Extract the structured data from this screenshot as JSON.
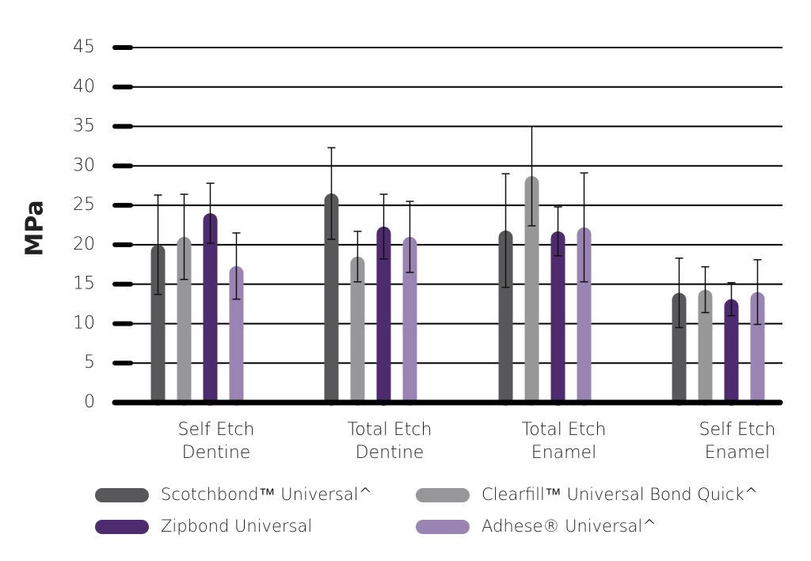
{
  "chart_data": {
    "type": "bar",
    "y_label": "MPa",
    "categories": [
      [
        "Self Etch",
        "Dentine"
      ],
      [
        "Total Etch",
        "Dentine"
      ],
      [
        "Total Etch",
        "Enamel"
      ],
      [
        "Self Etch",
        "Enamel"
      ]
    ],
    "series": [
      {
        "name": "Scotchbond™ Universal^",
        "color": "#58585a",
        "values": [
          20,
          26.5,
          21.8,
          13.9
        ],
        "errors": [
          6.3,
          5.8,
          7.2,
          4.4
        ]
      },
      {
        "name": "Clearfill™ Universal Bond Quick^",
        "color": "#97979a",
        "values": [
          21,
          18.5,
          28.7,
          14.3
        ],
        "errors": [
          5.4,
          3.2,
          6.3,
          2.9
        ]
      },
      {
        "name": "Zipbond Universal",
        "color": "#4e2a6e",
        "values": [
          24,
          22.3,
          21.7,
          13.1
        ],
        "errors": [
          3.8,
          4.1,
          3.1,
          2.1
        ]
      },
      {
        "name": "Adhese® Universal^",
        "color": "#9a84b4",
        "values": [
          17.3,
          21,
          22.2,
          14
        ],
        "errors": [
          4.2,
          4.5,
          6.9,
          4.1
        ]
      }
    ],
    "ylim": [
      0,
      45
    ],
    "yticks": [
      0,
      5,
      10,
      15,
      20,
      25,
      30,
      35,
      40,
      45
    ],
    "grid": true
  }
}
